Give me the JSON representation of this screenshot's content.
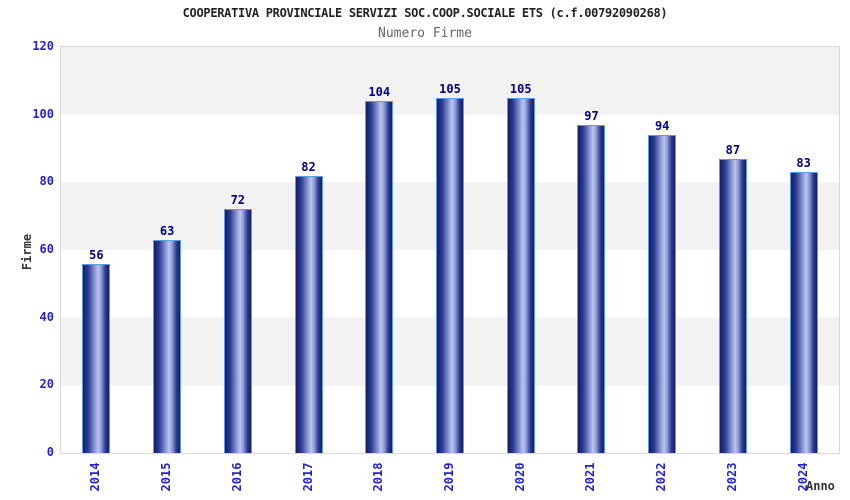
{
  "header": {
    "title": "COOPERATIVA PROVINCIALE SERVIZI SOC.COOP.SOCIALE ETS (c.f.00792090268)",
    "subtitle": "Numero Firme"
  },
  "chart_data": {
    "type": "bar",
    "title": "COOPERATIVA PROVINCIALE SERVIZI SOC.COOP.SOCIALE ETS (c.f.00792090268)",
    "subtitle": "Numero Firme",
    "categories": [
      "2014",
      "2015",
      "2016",
      "2017",
      "2018",
      "2019",
      "2020",
      "2021",
      "2022",
      "2023",
      "2024"
    ],
    "values": [
      56,
      63,
      72,
      82,
      104,
      105,
      105,
      97,
      94,
      87,
      83
    ],
    "xlabel": "Anno",
    "ylabel": "Firme",
    "ylim": [
      0,
      120
    ],
    "yticks": [
      0,
      20,
      40,
      60,
      80,
      100,
      120
    ],
    "grid": "alternating horizontal bands, gray above each odd 20-step",
    "legend_position": "none",
    "value_labels": "above each bar"
  },
  "colors": {
    "title_color": "#222222",
    "subtitle_color": "#666666",
    "axis_title_color": "#333333",
    "tick_color": "#2323cd",
    "value_color": "#000080",
    "band_gray": "#f2f2f2",
    "plot_border": "#d9d9d9",
    "bar_dark": "#131d62",
    "bar_mid": "#2c3c92",
    "bar_soft": "#8e9cd6",
    "bar_light": "#bcc5ee",
    "bar_border": "#5e9de6"
  }
}
